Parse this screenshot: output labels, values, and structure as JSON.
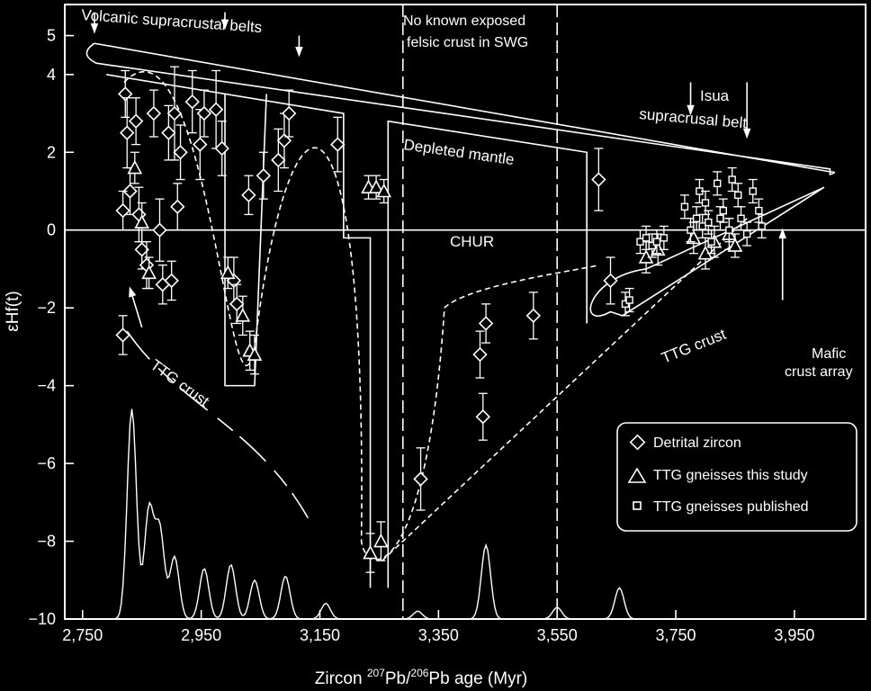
{
  "chart_data": {
    "type": "scatter",
    "title": "",
    "xlabel_parts": [
      "Zircon ",
      "207",
      "Pb/",
      "206",
      "Pb age (Myr)"
    ],
    "ylabel": "εHf(t)",
    "xlim": [
      2720,
      4070
    ],
    "ylim": [
      -10,
      5.8
    ],
    "xticks": [
      2750,
      2950,
      3150,
      3350,
      3550,
      3750,
      3950
    ],
    "xtick_labels": [
      "2,750",
      "2,950",
      "3,150",
      "3,350",
      "3,550",
      "3,750",
      "3,950"
    ],
    "yticks": [
      -10,
      -8,
      -6,
      -4,
      -2,
      0,
      2,
      4,
      5
    ],
    "ytick_labels": [
      "−10",
      "−8",
      "−6",
      "−4",
      "−2",
      "0",
      "2",
      "4",
      "5"
    ],
    "legend": {
      "position": "bottom-right",
      "entries": [
        "Detrital zircon",
        "TTG gneisses this study",
        "TTG gneisses published"
      ]
    },
    "annotations": [
      "Volcanic supracrustal belts",
      "No known exposed",
      "felsic crust in SWG",
      "Isua",
      "supracrusal belt",
      "Depleted mantle",
      "CHUR",
      "TTG crust",
      "TTG crust",
      "Mafic",
      "crust array"
    ],
    "series": [
      {
        "name": "Detrital zircon",
        "marker": "diamond",
        "points": [
          {
            "x": 2822,
            "y": 3.5,
            "err": 0.6
          },
          {
            "x": 2825,
            "y": 2.5,
            "err": 0.9
          },
          {
            "x": 2830,
            "y": 1.0,
            "err": 0.6
          },
          {
            "x": 2818,
            "y": 0.5,
            "err": 0.5
          },
          {
            "x": 2840,
            "y": 2.8,
            "err": 0.6
          },
          {
            "x": 2845,
            "y": 0.4,
            "err": 0.7
          },
          {
            "x": 2850,
            "y": -0.5,
            "err": 0.5
          },
          {
            "x": 2858,
            "y": -0.9,
            "err": 0.6
          },
          {
            "x": 2870,
            "y": 3.0,
            "err": 0.6
          },
          {
            "x": 2880,
            "y": 0.0,
            "err": 0.8
          },
          {
            "x": 2885,
            "y": -1.4,
            "err": 0.5
          },
          {
            "x": 2895,
            "y": 2.5,
            "err": 0.7
          },
          {
            "x": 2900,
            "y": -1.3,
            "err": 0.5
          },
          {
            "x": 2905,
            "y": 3.0,
            "err": 1.2
          },
          {
            "x": 2910,
            "y": 0.6,
            "err": 0.6
          },
          {
            "x": 2915,
            "y": 2.0,
            "err": 0.7
          },
          {
            "x": 2935,
            "y": 3.3,
            "err": 0.8
          },
          {
            "x": 2948,
            "y": 2.2,
            "err": 0.9
          },
          {
            "x": 2955,
            "y": 3.0,
            "err": 0.6
          },
          {
            "x": 2975,
            "y": 3.1,
            "err": 1.0
          },
          {
            "x": 2985,
            "y": 2.1,
            "err": 0.7
          },
          {
            "x": 3005,
            "y": -1.3,
            "err": 0.6
          },
          {
            "x": 3010,
            "y": -1.9,
            "err": 0.5
          },
          {
            "x": 3030,
            "y": 0.9,
            "err": 0.5
          },
          {
            "x": 3055,
            "y": 1.4,
            "err": 0.6
          },
          {
            "x": 3080,
            "y": 1.8,
            "err": 0.8
          },
          {
            "x": 3090,
            "y": 2.3,
            "err": 0.7
          },
          {
            "x": 3098,
            "y": 3.0,
            "err": 0.6
          },
          {
            "x": 3180,
            "y": 2.2,
            "err": 0.7
          },
          {
            "x": 3320,
            "y": -6.4,
            "err": 0.8
          },
          {
            "x": 3420,
            "y": -3.2,
            "err": 0.6
          },
          {
            "x": 3425,
            "y": -4.8,
            "err": 0.6
          },
          {
            "x": 3430,
            "y": -2.4,
            "err": 0.5
          },
          {
            "x": 3510,
            "y": -2.2,
            "err": 0.6
          },
          {
            "x": 3620,
            "y": 1.3,
            "err": 0.8
          },
          {
            "x": 3640,
            "y": -1.3,
            "err": 0.6
          },
          {
            "x": 2818,
            "y": -2.7,
            "err": 0.5
          }
        ]
      },
      {
        "name": "TTG gneisses this study",
        "marker": "triangle",
        "points": [
          {
            "x": 2838,
            "y": 1.6,
            "err": 0.4
          },
          {
            "x": 2850,
            "y": 0.2,
            "err": 0.5
          },
          {
            "x": 2862,
            "y": -1.1,
            "err": 0.4
          },
          {
            "x": 2995,
            "y": -1.1,
            "err": 0.4
          },
          {
            "x": 3020,
            "y": -2.2,
            "err": 0.5
          },
          {
            "x": 3032,
            "y": -3.1,
            "err": 0.5
          },
          {
            "x": 3040,
            "y": -3.2,
            "err": 0.5
          },
          {
            "x": 3232,
            "y": 1.1,
            "err": 0.3
          },
          {
            "x": 3245,
            "y": 1.1,
            "err": 0.3
          },
          {
            "x": 3258,
            "y": 1.0,
            "err": 0.3
          },
          {
            "x": 3235,
            "y": -8.3,
            "err": 0.5
          },
          {
            "x": 3253,
            "y": -8.0,
            "err": 0.5
          },
          {
            "x": 3700,
            "y": -0.7,
            "err": 0.4
          },
          {
            "x": 3720,
            "y": -0.5,
            "err": 0.4
          },
          {
            "x": 3780,
            "y": -0.2,
            "err": 0.4
          },
          {
            "x": 3800,
            "y": -0.6,
            "err": 0.4
          },
          {
            "x": 3815,
            "y": -0.3,
            "err": 0.4
          },
          {
            "x": 3840,
            "y": -0.1,
            "err": 0.4
          },
          {
            "x": 3850,
            "y": -0.4,
            "err": 0.3
          }
        ]
      },
      {
        "name": "TTG gneisses published",
        "marker": "square",
        "points": [
          {
            "x": 3665,
            "y": -1.9,
            "err": 0.3
          },
          {
            "x": 3672,
            "y": -1.8,
            "err": 0.3
          },
          {
            "x": 3690,
            "y": -0.3,
            "err": 0.3
          },
          {
            "x": 3700,
            "y": -0.2,
            "err": 0.3
          },
          {
            "x": 3710,
            "y": -0.4,
            "err": 0.3
          },
          {
            "x": 3718,
            "y": -0.3,
            "err": 0.3
          },
          {
            "x": 3730,
            "y": -0.2,
            "err": 0.3
          },
          {
            "x": 3765,
            "y": 0.6,
            "err": 0.3
          },
          {
            "x": 3775,
            "y": 0.0,
            "err": 0.3
          },
          {
            "x": 3785,
            "y": 0.3,
            "err": 0.3
          },
          {
            "x": 3790,
            "y": 1.0,
            "err": 0.3
          },
          {
            "x": 3795,
            "y": 0.1,
            "err": 0.3
          },
          {
            "x": 3800,
            "y": 0.7,
            "err": 0.3
          },
          {
            "x": 3805,
            "y": 0.2,
            "err": 0.3
          },
          {
            "x": 3810,
            "y": -0.3,
            "err": 0.3
          },
          {
            "x": 3820,
            "y": 1.2,
            "err": 0.3
          },
          {
            "x": 3825,
            "y": 0.3,
            "err": 0.3
          },
          {
            "x": 3830,
            "y": 0.5,
            "err": 0.3
          },
          {
            "x": 3840,
            "y": 0.0,
            "err": 0.3
          },
          {
            "x": 3845,
            "y": 1.3,
            "err": 0.3
          },
          {
            "x": 3855,
            "y": 0.9,
            "err": 0.3
          },
          {
            "x": 3860,
            "y": 0.3,
            "err": 0.3
          },
          {
            "x": 3870,
            "y": -0.1,
            "err": 0.3
          },
          {
            "x": 3880,
            "y": 1.0,
            "err": 0.3
          },
          {
            "x": 3890,
            "y": 0.5,
            "err": 0.3
          },
          {
            "x": 3895,
            "y": 0.1,
            "err": 0.3
          }
        ]
      }
    ],
    "reference_lines": {
      "chur": 0,
      "depleted_mantle": {
        "x": [
          2770,
          4010
        ],
        "y": [
          4.8,
          1.5
        ]
      },
      "no_exposed_crust_dashed_x": [
        3290,
        3550
      ]
    },
    "age_histogram_peaks": [
      {
        "x": 2833,
        "h": 5.4
      },
      {
        "x": 2862,
        "h": 2.8
      },
      {
        "x": 2880,
        "h": 2.3
      },
      {
        "x": 2905,
        "h": 1.6
      },
      {
        "x": 2955,
        "h": 1.3
      },
      {
        "x": 3000,
        "h": 1.4
      },
      {
        "x": 3040,
        "h": 1.0
      },
      {
        "x": 3092,
        "h": 1.1
      },
      {
        "x": 3160,
        "h": 0.4
      },
      {
        "x": 3315,
        "h": 0.2
      },
      {
        "x": 3430,
        "h": 1.9
      },
      {
        "x": 3550,
        "h": 0.3
      },
      {
        "x": 3655,
        "h": 0.8
      }
    ]
  }
}
